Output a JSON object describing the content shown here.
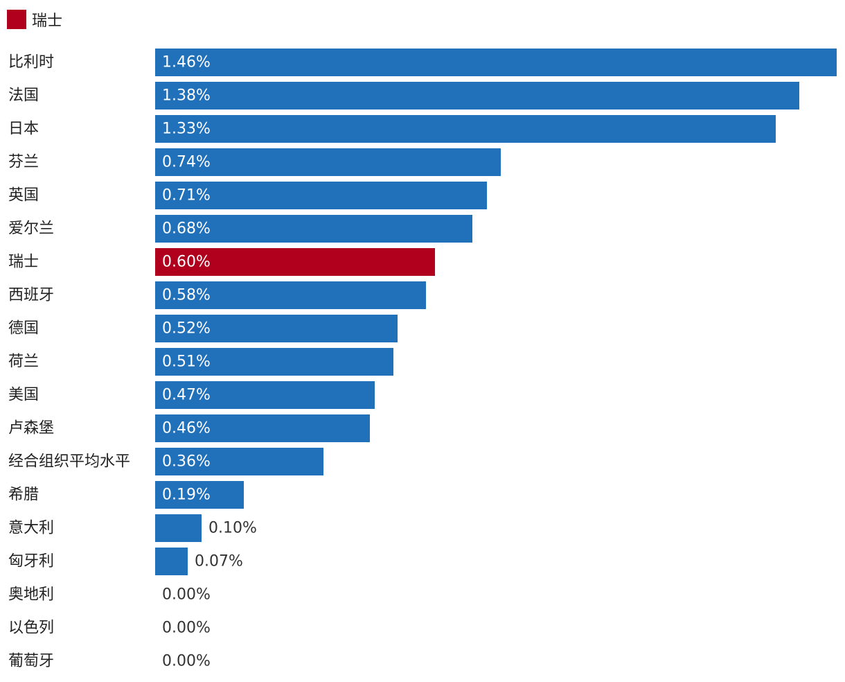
{
  "legend": {
    "label": "瑞士",
    "color": "#B0001E"
  },
  "colors": {
    "default_bar": "#2170BA",
    "highlight_bar": "#B0001E",
    "label_inside": "#FFFFFF",
    "label_outside": "#333333"
  },
  "chart_data": {
    "type": "bar",
    "orientation": "horizontal",
    "title": "",
    "xlabel": "",
    "ylabel": "",
    "value_format": "percent_2dp",
    "highlight_category": "瑞士",
    "xlim": [
      0,
      1.46
    ],
    "grid": false,
    "legend_position": "top-left",
    "categories": [
      "比利时",
      "法国",
      "日本",
      "芬兰",
      "英国",
      "爱尔兰",
      "瑞士",
      "西班牙",
      "德国",
      "荷兰",
      "美国",
      "卢森堡",
      "经合组织平均水平",
      "希腊",
      "意大利",
      "匈牙利",
      "奥地利",
      "以色列",
      "葡萄牙"
    ],
    "values": [
      1.46,
      1.38,
      1.33,
      0.74,
      0.71,
      0.68,
      0.6,
      0.58,
      0.52,
      0.51,
      0.47,
      0.46,
      0.36,
      0.19,
      0.1,
      0.07,
      0.0,
      0.0,
      0.0
    ],
    "labels": [
      "1.46%",
      "1.38%",
      "1.33%",
      "0.74%",
      "0.71%",
      "0.68%",
      "0.60%",
      "0.58%",
      "0.52%",
      "0.51%",
      "0.47%",
      "0.46%",
      "0.36%",
      "0.19%",
      "0.10%",
      "0.07%",
      "0.00%",
      "0.00%",
      "0.00%"
    ]
  }
}
